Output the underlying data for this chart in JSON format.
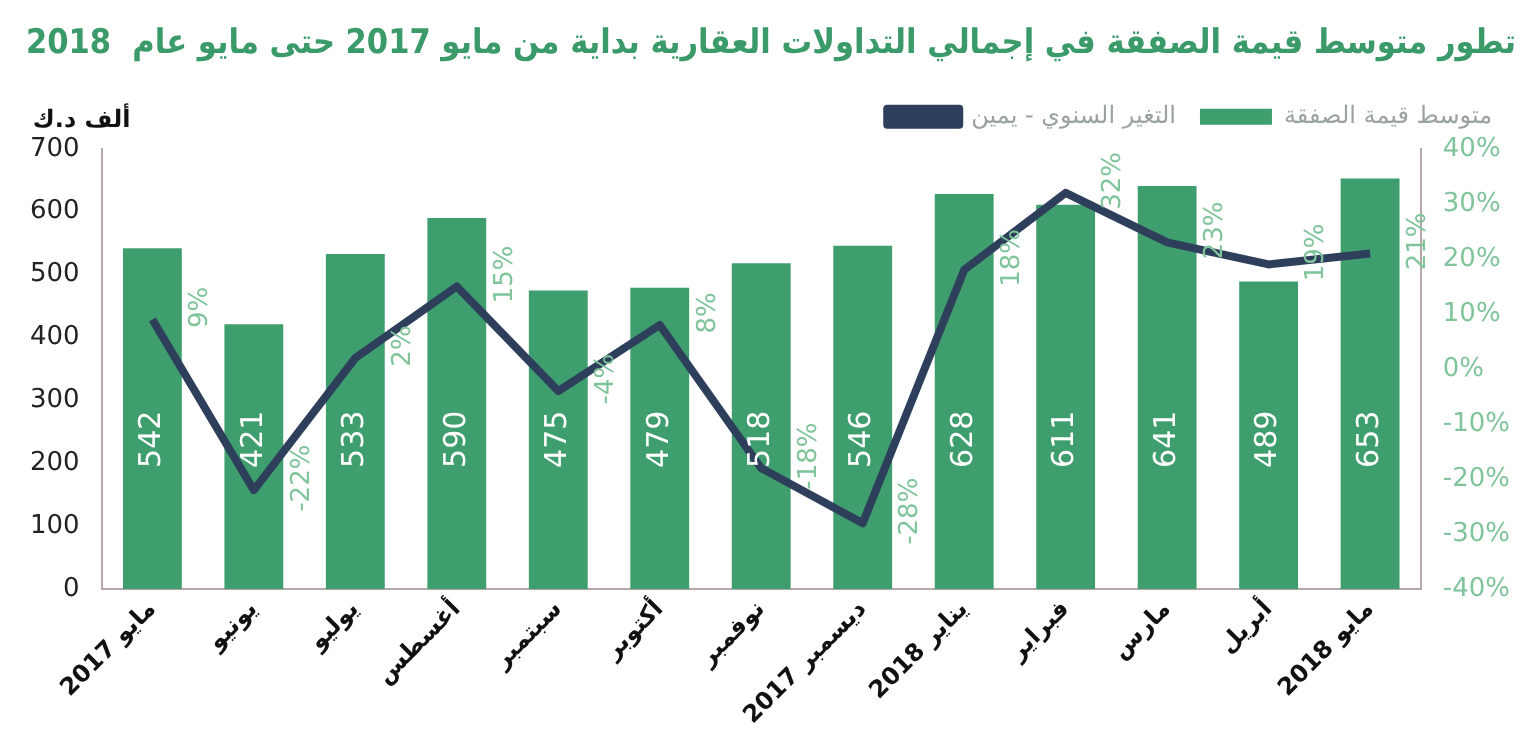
{
  "chart_data": {
    "type": "bar",
    "title": "تطور متوسط قيمة الصفقة في إجمالي التداولات العقارية بداية من مايو 2017 حتى مايو عام  2018",
    "ylabel": "ألف د.ك",
    "categories": [
      "مايو 2017",
      "يونيو",
      "يوليو",
      "أغسطس",
      "سبتمبر",
      "أكتوبر",
      "نوفمبر",
      "ديسمبر 2017",
      "يناير 2018",
      "فبراير",
      "مارس",
      "أبريل",
      "مايو 2018"
    ],
    "series": [
      {
        "name": "متوسط قيمة الصفقة",
        "color": "#3f9e6e",
        "values": [
          542,
          421,
          533,
          590,
          475,
          479,
          518,
          546,
          628,
          611,
          641,
          489,
          653
        ]
      },
      {
        "name": "التغير السنوي - يمين",
        "type": "line",
        "axis": "y2",
        "color": "#2e3f5c",
        "values": [
          9,
          -22,
          2,
          15,
          -4,
          8,
          -18,
          -28,
          18,
          32,
          23,
          19,
          21
        ],
        "value_labels": [
          "9%",
          "-22%",
          "2%",
          "15%",
          "-4%",
          "8%",
          "-18%",
          "-28%",
          "18%",
          "32%",
          "23%",
          "19%",
          "21%"
        ]
      }
    ],
    "ylim": [
      0,
      700
    ],
    "yticks": [
      0,
      100,
      200,
      300,
      400,
      500,
      600,
      700
    ],
    "y2lim": [
      -40,
      40
    ],
    "y2ticks": [
      {
        "value": -40,
        "label": "-40%"
      },
      {
        "value": -30,
        "label": "-30%"
      },
      {
        "value": -20,
        "label": "-20%"
      },
      {
        "value": -10,
        "label": "-10%"
      },
      {
        "value": 0,
        "label": "0%"
      },
      {
        "value": 10,
        "label": "10%"
      },
      {
        "value": 20,
        "label": "20%"
      },
      {
        "value": 30,
        "label": "30%"
      },
      {
        "value": 40,
        "label": "40%"
      }
    ],
    "data_labels": true,
    "grid": false,
    "legend": "top right",
    "marker": "none"
  }
}
